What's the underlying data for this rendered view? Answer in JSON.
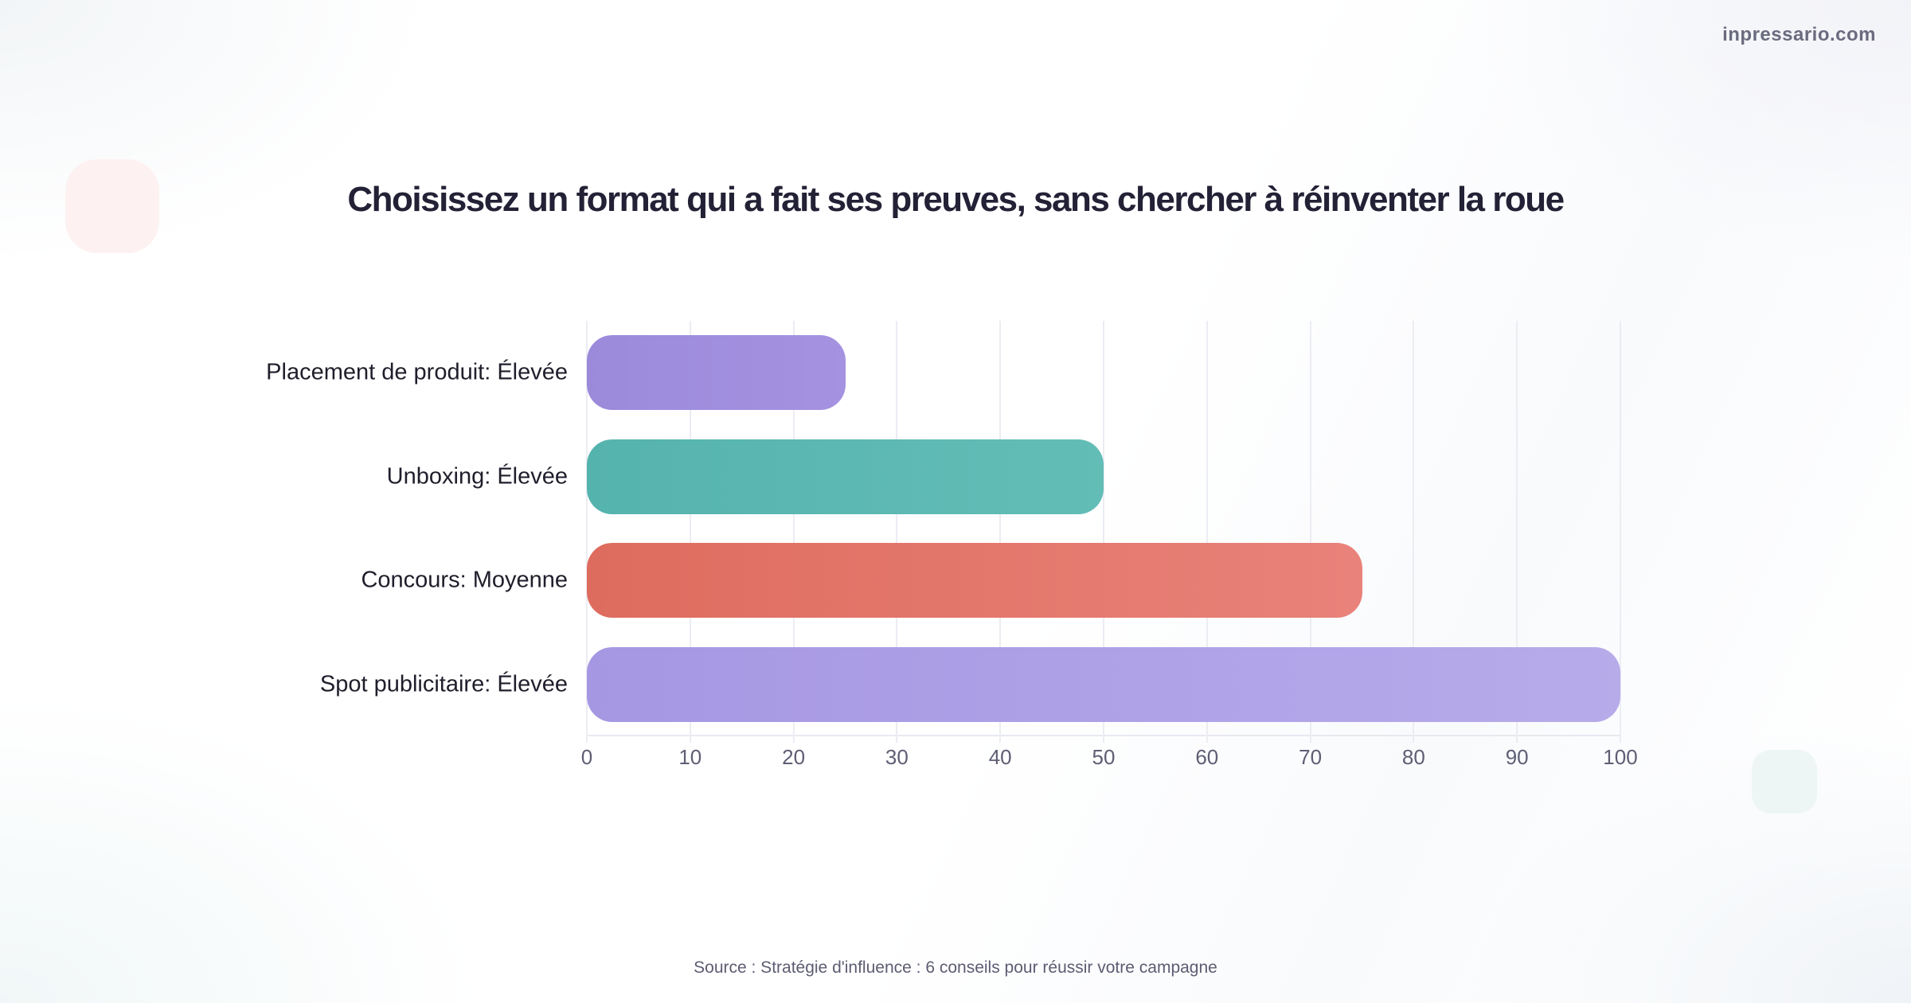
{
  "watermark": "inpressario.com",
  "source": "Source : Stratégie d'influence : 6 conseils pour réussir votre campagne",
  "decorations": {
    "pink_square_color": "#fdf1f1",
    "teal_square_color": "#edf6f5"
  },
  "chart_data": {
    "type": "bar",
    "orientation": "horizontal",
    "title": "Choisissez un format qui a fait ses preuves, sans chercher à réinventer la roue",
    "categories": [
      "Placement de produit: Élevée",
      "Unboxing: Élevée",
      "Concours: Moyenne",
      "Spot publicitaire: Élevée"
    ],
    "values": [
      25,
      50,
      75,
      100
    ],
    "bar_gradients": [
      [
        "#9b89da",
        "#a593e1"
      ],
      [
        "#55b3ae",
        "#63bdb7"
      ],
      [
        "#de6c5e",
        "#e9827a"
      ],
      [
        "#a697e3",
        "#b7abea"
      ]
    ],
    "xlim": [
      0,
      100
    ],
    "x_ticks": [
      0,
      10,
      20,
      30,
      40,
      50,
      60,
      70,
      80,
      90,
      100
    ],
    "grid": true,
    "grid_color": "#ececf3",
    "xlabel": "",
    "ylabel": "",
    "legend": false
  }
}
